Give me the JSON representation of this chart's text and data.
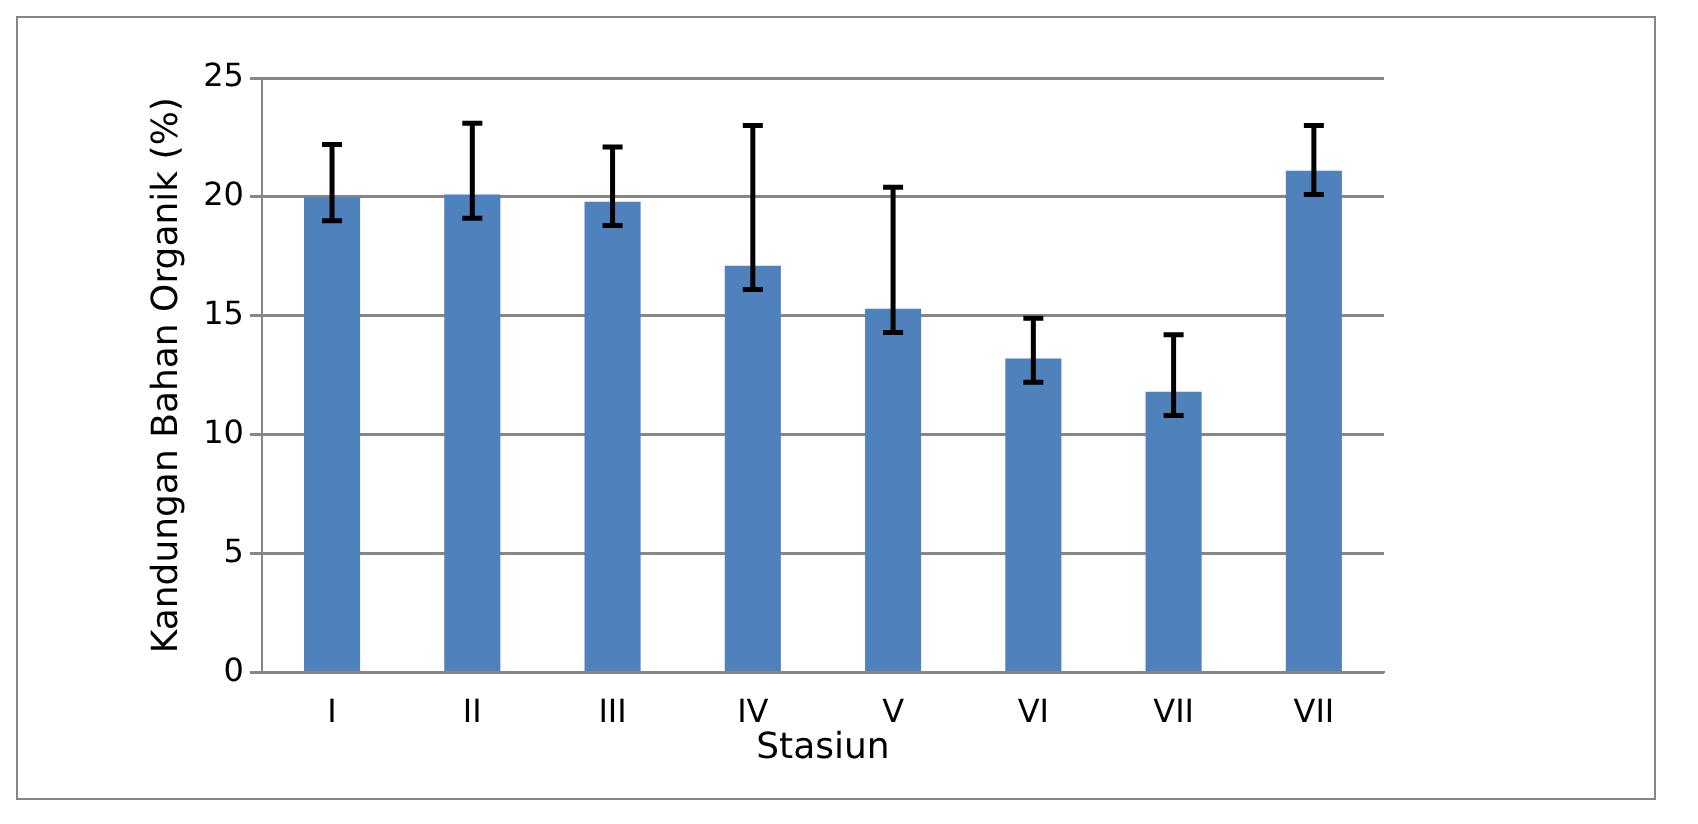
{
  "chart_data": {
    "type": "bar",
    "xlabel": "Stasiun",
    "ylabel": "Kandungan Bahan Organik (%)",
    "categories": [
      "I",
      "II",
      "III",
      "IV",
      "V",
      "VI",
      "VII",
      "VII"
    ],
    "series": [
      {
        "color": "#4f81bd",
        "values": [
          20.0,
          20.1,
          19.8,
          17.1,
          15.3,
          13.2,
          11.8,
          21.1
        ],
        "errors": [
          [
            19.0,
            22.2
          ],
          [
            19.1,
            23.1
          ],
          [
            18.8,
            22.1
          ],
          [
            16.1,
            23.0
          ],
          [
            14.3,
            20.4
          ],
          [
            12.2,
            14.9
          ],
          [
            10.8,
            14.2
          ],
          [
            20.1,
            23.0
          ]
        ]
      }
    ],
    "ylim": [
      0,
      25
    ],
    "yticks": [
      0,
      5,
      10,
      15,
      20,
      25
    ],
    "grid": "y",
    "legend": false
  }
}
